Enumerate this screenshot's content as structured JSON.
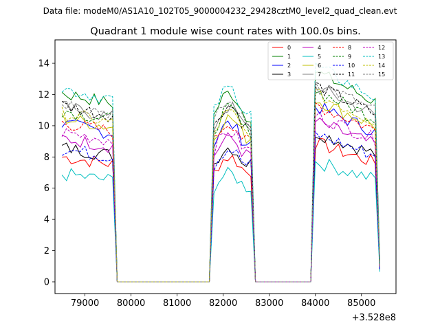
{
  "suptitle": "Data file: modeM0/AS1A10_102T05_9000004232_29428cztM0_level2_quad_clean.evt",
  "chart_data": {
    "type": "line",
    "title": "Quadrant 1 module wise count rates with 100.0s bins.",
    "xlabel": "",
    "ylabel": "",
    "x_offset_label": "+3.528e8",
    "xlim": [
      78350,
      85750
    ],
    "ylim": [
      -0.75,
      15.5
    ],
    "xticks": [
      79000,
      80000,
      81000,
      82000,
      83000,
      84000,
      85000
    ],
    "yticks": [
      0,
      2,
      4,
      6,
      8,
      10,
      12,
      14
    ],
    "grid": false,
    "legend_position": "top-right",
    "series": [
      {
        "name": "0",
        "color": "#ff0000",
        "dash": "solid",
        "level": 8.0
      },
      {
        "name": "1",
        "color": "#008000",
        "dash": "solid",
        "level": 12.1
      },
      {
        "name": "2",
        "color": "#0000ff",
        "dash": "solid",
        "level": 10.1
      },
      {
        "name": "3",
        "color": "#000000",
        "dash": "solid",
        "level": 8.6
      },
      {
        "name": "4",
        "color": "#bf00bf",
        "dash": "solid",
        "level": 9.2
      },
      {
        "name": "5",
        "color": "#00bfbf",
        "dash": "solid",
        "level": 6.9
      },
      {
        "name": "6",
        "color": "#bfbf00",
        "dash": "solid",
        "level": 10.5
      },
      {
        "name": "7",
        "color": "#808080",
        "dash": "solid",
        "level": 11.2
      },
      {
        "name": "8",
        "color": "#ff0000",
        "dash": "dashed",
        "level": 10.2
      },
      {
        "name": "9",
        "color": "#008000",
        "dash": "dashed",
        "level": 11.0
      },
      {
        "name": "10",
        "color": "#0000ff",
        "dash": "dashed",
        "level": 8.5
      },
      {
        "name": "11",
        "color": "#000000",
        "dash": "dashed",
        "level": 11.3
      },
      {
        "name": "12",
        "color": "#bf00bf",
        "dash": "dashed",
        "level": 9.6
      },
      {
        "name": "13",
        "color": "#00bfbf",
        "dash": "dashed",
        "level": 12.4
      },
      {
        "name": "14",
        "color": "#bfbf00",
        "dash": "dashed",
        "level": 10.8
      },
      {
        "name": "15",
        "color": "#808080",
        "dash": "dashed",
        "level": 11.5
      }
    ],
    "segments": [
      {
        "start": 78500,
        "end": 79650,
        "shape": "flat"
      },
      {
        "start": 81800,
        "end": 82650,
        "shape": "peaked"
      },
      {
        "start": 83950,
        "end": 85400,
        "shape": "decay"
      }
    ],
    "gap_value": 0.0
  }
}
